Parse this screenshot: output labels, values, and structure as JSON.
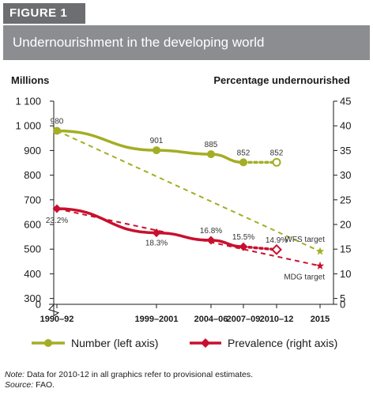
{
  "figure_label": "FIGURE 1",
  "note": {
    "note_prefix": "Note:",
    "note_text": "Data for 2010-12 in all graphics refer to provisional estimates.",
    "source_prefix": "Source:",
    "source_text": "FAO."
  },
  "chart_data": {
    "type": "line",
    "title": "Undernourishment in the developing world",
    "ylabel_left": "Millions",
    "ylabel_right": "Percentage undernourished",
    "left_ticks": [
      "0",
      "300",
      "400",
      "500",
      "600",
      "700",
      "800",
      "900",
      "1 000",
      "1 100"
    ],
    "right_ticks": [
      "0",
      "5",
      "10",
      "15",
      "20",
      "25",
      "30",
      "35",
      "40",
      "45"
    ],
    "ylim_left": [
      300,
      1100
    ],
    "ylim_right": [
      5,
      45
    ],
    "axis_break": true,
    "x_categories": [
      "1990–92",
      "1999–2001",
      "2004–06",
      "2007–09",
      "2010–12",
      "2015"
    ],
    "series": [
      {
        "name": "Number (left axis)",
        "axis": "left",
        "color": "#a3ae24",
        "points": [
          {
            "x": "1990–92",
            "y": 980,
            "label": "980"
          },
          {
            "x": "1999–2001",
            "y": 901,
            "label": "901"
          },
          {
            "x": "2004–06",
            "y": 885,
            "label": "885"
          },
          {
            "x": "2007–09",
            "y": 852,
            "label": "852"
          },
          {
            "x": "2010–12",
            "y": 852,
            "label": "852",
            "provisional": true
          }
        ],
        "target": {
          "name": "WFS target",
          "from": "1990–92",
          "x": "2015",
          "y": 491
        }
      },
      {
        "name": "Prevalence (right axis)",
        "axis": "right",
        "color": "#c8102e",
        "points": [
          {
            "x": "1990–92",
            "y": 23.2,
            "label": "23.2%"
          },
          {
            "x": "1999–2001",
            "y": 18.3,
            "label": "18.3%"
          },
          {
            "x": "2004–06",
            "y": 16.8,
            "label": "16.8%"
          },
          {
            "x": "2007–09",
            "y": 15.5,
            "label": "15.5%"
          },
          {
            "x": "2010–12",
            "y": 14.9,
            "label": "14.9%",
            "provisional": true
          }
        ],
        "target": {
          "name": "MDG target",
          "from": "1990–92",
          "x": "2015",
          "y": 11.6
        }
      }
    ],
    "legend": {
      "placement": "bottom"
    }
  }
}
